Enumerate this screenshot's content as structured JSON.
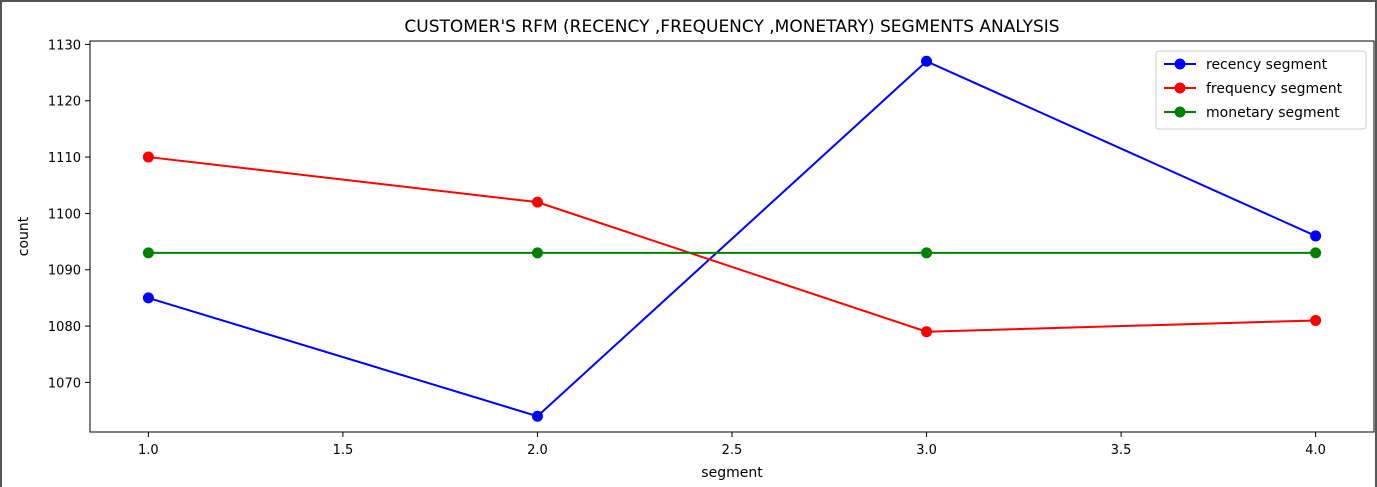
{
  "chart_data": {
    "type": "line",
    "title": "CUSTOMER'S  RFM (RECENCY ,FREQUENCY ,MONETARY)  SEGMENTS ANALYSIS",
    "xlabel": "segment",
    "ylabel": "count",
    "x": [
      1.0,
      2.0,
      3.0,
      4.0
    ],
    "xlim": [
      0.85,
      4.15
    ],
    "ylim": [
      1061.2,
      1130.6
    ],
    "xticks": [
      1.0,
      1.5,
      2.0,
      2.5,
      3.0,
      3.5,
      4.0
    ],
    "xtick_labels": [
      "1.0",
      "1.5",
      "2.0",
      "2.5",
      "3.0",
      "3.5",
      "4.0"
    ],
    "yticks": [
      1070,
      1080,
      1090,
      1100,
      1110,
      1120,
      1130
    ],
    "ytick_labels": [
      "1070",
      "1080",
      "1090",
      "1100",
      "1110",
      "1120",
      "1130"
    ],
    "grid": false,
    "legend_position": "top-right",
    "series": [
      {
        "name": "recency segment",
        "color": "#0000ff",
        "marker": "circle",
        "values": [
          1085,
          1064,
          1127,
          1096
        ]
      },
      {
        "name": "frequency segment",
        "color": "#ff0000",
        "marker": "circle",
        "values": [
          1110,
          1102,
          1079,
          1081
        ]
      },
      {
        "name": "monetary segment",
        "color": "#008000",
        "marker": "circle",
        "values": [
          1093,
          1093,
          1093,
          1093
        ]
      }
    ]
  }
}
